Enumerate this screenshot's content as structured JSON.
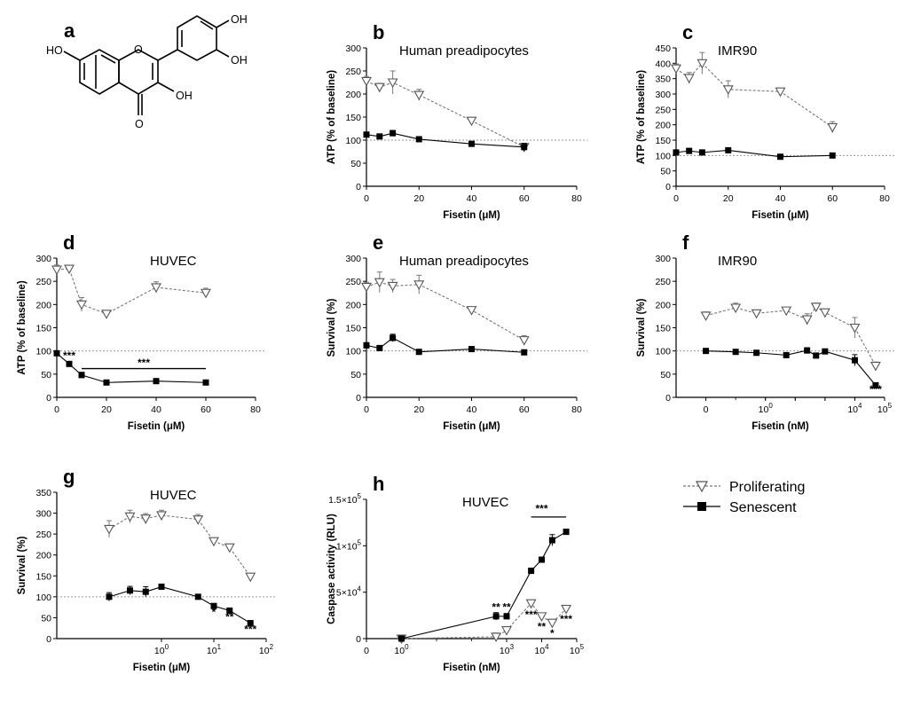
{
  "colors": {
    "proliferating": "#777777",
    "senescent": "#000000",
    "baseline": "#999999"
  },
  "legend": {
    "items": [
      "Proliferating",
      "Senescent"
    ]
  },
  "molecule": {
    "label": "a",
    "groups": [
      "HO",
      "OH",
      "OH",
      "OH",
      "O",
      "O"
    ]
  },
  "chart_data": [
    {
      "id": "b",
      "type": "line",
      "label": "b",
      "title": "Human preadipocytes",
      "xlabel": "Fisetin (μM)",
      "ylabel": "ATP (% of baseline)",
      "xscale": "linear",
      "xlim": [
        0,
        80
      ],
      "ylim": [
        0,
        300
      ],
      "xticks": [
        0,
        20,
        40,
        60,
        80
      ],
      "yticks": [
        0,
        50,
        100,
        150,
        200,
        250,
        300
      ],
      "xtick_labels": [
        "0",
        "20",
        "40",
        "60",
        "80"
      ],
      "baseline": 100,
      "series": [
        {
          "name": "Proliferating",
          "x": [
            0,
            5,
            10,
            20,
            40,
            60
          ],
          "y": [
            228,
            215,
            225,
            198,
            142,
            85
          ],
          "err": [
            10,
            8,
            25,
            12,
            4,
            8
          ]
        },
        {
          "name": "Senescent",
          "x": [
            0,
            5,
            10,
            20,
            40,
            60
          ],
          "y": [
            112,
            108,
            115,
            102,
            92,
            85
          ],
          "err": [
            5,
            5,
            6,
            4,
            4,
            8
          ]
        }
      ],
      "annotations": []
    },
    {
      "id": "c",
      "type": "line",
      "label": "c",
      "title": "IMR90",
      "xlabel": "Fisetin (μM)",
      "ylabel": "ATP (% of baseline)",
      "xscale": "linear",
      "xlim": [
        0,
        80
      ],
      "ylim": [
        0,
        450
      ],
      "xticks": [
        0,
        20,
        40,
        60,
        80
      ],
      "yticks": [
        0,
        50,
        100,
        150,
        200,
        250,
        300,
        350,
        400,
        450
      ],
      "xtick_labels": [
        "0",
        "20",
        "40",
        "60",
        "80"
      ],
      "baseline": 100,
      "series": [
        {
          "name": "Proliferating",
          "x": [
            0,
            5,
            10,
            20,
            40,
            60
          ],
          "y": [
            383,
            352,
            400,
            315,
            308,
            192
          ],
          "err": [
            15,
            18,
            35,
            28,
            10,
            18
          ]
        },
        {
          "name": "Senescent",
          "x": [
            0,
            5,
            10,
            20,
            40,
            60
          ],
          "y": [
            110,
            115,
            110,
            117,
            96,
            100
          ],
          "err": [
            5,
            5,
            5,
            5,
            4,
            4
          ]
        }
      ],
      "annotations": []
    },
    {
      "id": "d",
      "type": "line",
      "label": "d",
      "title": "HUVEC",
      "xlabel": "Fisetin (μM)",
      "ylabel": "ATP (% of baseline)",
      "xscale": "linear",
      "xlim": [
        0,
        80
      ],
      "ylim": [
        0,
        300
      ],
      "xticks": [
        0,
        20,
        40,
        60,
        80
      ],
      "yticks": [
        0,
        50,
        100,
        150,
        200,
        250,
        300
      ],
      "xtick_labels": [
        "0",
        "20",
        "40",
        "60",
        "80"
      ],
      "baseline": 100,
      "series": [
        {
          "name": "Proliferating",
          "x": [
            0,
            5,
            10,
            20,
            40,
            60
          ],
          "y": [
            275,
            277,
            200,
            180,
            237,
            225
          ],
          "err": [
            10,
            5,
            15,
            4,
            12,
            10
          ]
        },
        {
          "name": "Senescent",
          "x": [
            0,
            5,
            10,
            20,
            40,
            60
          ],
          "y": [
            95,
            72,
            48,
            32,
            35,
            32
          ],
          "err": [
            3,
            3,
            6,
            3,
            3,
            3
          ]
        }
      ],
      "annotations": [
        {
          "text": "***",
          "x": 5,
          "y": 82
        },
        {
          "text": "***",
          "x": 35,
          "y": 67
        }
      ],
      "bracket": {
        "x1": 10,
        "x2": 60,
        "y": 62
      }
    },
    {
      "id": "e",
      "type": "line",
      "label": "e",
      "title": "Human preadipocytes",
      "xlabel": "Fisetin (μM)",
      "ylabel": "Survival (%)",
      "xscale": "linear",
      "xlim": [
        0,
        80
      ],
      "ylim": [
        0,
        300
      ],
      "xticks": [
        0,
        20,
        40,
        60,
        80
      ],
      "yticks": [
        0,
        50,
        100,
        150,
        200,
        250,
        300
      ],
      "xtick_labels": [
        "0",
        "20",
        "40",
        "60",
        "80"
      ],
      "baseline": 100,
      "series": [
        {
          "name": "Proliferating",
          "x": [
            0,
            5,
            10,
            20,
            40,
            60
          ],
          "y": [
            238,
            248,
            240,
            243,
            188,
            123
          ],
          "err": [
            10,
            22,
            14,
            20,
            4,
            10
          ]
        },
        {
          "name": "Senescent",
          "x": [
            0,
            5,
            10,
            20,
            40,
            60
          ],
          "y": [
            112,
            106,
            128,
            98,
            104,
            97
          ],
          "err": [
            6,
            6,
            8,
            5,
            4,
            4
          ]
        }
      ],
      "annotations": []
    },
    {
      "id": "f",
      "type": "line",
      "label": "f",
      "title": "IMR90",
      "xlabel": "Fisetin (nM)",
      "ylabel": "Survival (%)",
      "xscale": "log",
      "xlim": [
        -2,
        5
      ],
      "ylim": [
        0,
        300
      ],
      "xticks": [
        0,
        1,
        2,
        3,
        4,
        5
      ],
      "yticks": [
        0,
        50,
        100,
        150,
        200,
        250,
        300
      ],
      "xtick_labels": [
        "0",
        "10^0",
        "",
        "",
        "10^4",
        "10^5"
      ],
      "baseline": 100,
      "series": [
        {
          "name": "Proliferating",
          "x": [
            "0",
            1,
            5,
            50,
            250,
            500,
            1000,
            10000,
            50000
          ],
          "y": [
            176,
            193,
            181,
            187,
            168,
            195,
            183,
            150,
            68
          ],
          "err": [
            8,
            10,
            6,
            5,
            12,
            8,
            5,
            22,
            8
          ]
        },
        {
          "name": "Senescent",
          "x": [
            "0",
            1,
            5,
            50,
            250,
            500,
            1000,
            10000,
            50000
          ],
          "y": [
            100,
            98,
            96,
            91,
            101,
            90,
            99,
            80,
            26
          ],
          "err": [
            4,
            4,
            4,
            4,
            6,
            4,
            4,
            12,
            3
          ]
        }
      ],
      "annotations": [
        {
          "text": "***",
          "x": 50000,
          "y": 10
        }
      ]
    },
    {
      "id": "g",
      "type": "line",
      "label": "g",
      "title": "HUVEC",
      "xlabel": "Fisetin (μM)",
      "ylabel": "Survival (%)",
      "xscale": "log",
      "xlim": [
        -2,
        2
      ],
      "ylim": [
        0,
        350
      ],
      "xticks": [
        0,
        1,
        2
      ],
      "yticks": [
        0,
        50,
        100,
        150,
        200,
        250,
        300,
        350
      ],
      "xtick_labels": [
        "10^0",
        "10^1",
        "10^2"
      ],
      "baseline": 100,
      "series": [
        {
          "name": "Proliferating",
          "x": [
            "0",
            0.25,
            0.5,
            1,
            5,
            10,
            20,
            50
          ],
          "y": [
            262,
            292,
            287,
            295,
            285,
            233,
            218,
            148
          ],
          "err": [
            20,
            15,
            12,
            12,
            12,
            8,
            5,
            8
          ]
        },
        {
          "name": "Senescent",
          "x": [
            "0",
            0.25,
            0.5,
            1,
            5,
            10,
            20,
            50
          ],
          "y": [
            100,
            115,
            112,
            124,
            100,
            78,
            67,
            37
          ],
          "err": [
            10,
            10,
            12,
            6,
            6,
            4,
            3,
            3
          ]
        }
      ],
      "annotations": [
        {
          "text": "*",
          "x": 10,
          "y": 55
        },
        {
          "text": "**",
          "x": 20,
          "y": 44
        },
        {
          "text": "***",
          "x": 50,
          "y": 14
        }
      ]
    },
    {
      "id": "h",
      "type": "line",
      "label": "h",
      "title": "HUVEC",
      "xlabel": "Fisetin (nM)",
      "ylabel": "Caspase activity (RLU)",
      "xscale": "log",
      "xlim": [
        -1,
        5
      ],
      "ylim": [
        0,
        150000
      ],
      "xticks": [
        -1,
        0,
        3,
        4,
        5
      ],
      "yticks": [
        0,
        50000,
        100000,
        150000
      ],
      "xtick_labels": [
        "0",
        "10^0",
        "10^3",
        "10^4",
        "10^5"
      ],
      "ytick_labels": [
        "0",
        "5×10^4",
        "1×10^5",
        "1.5×10^5"
      ],
      "baseline": null,
      "series": [
        {
          "name": "Proliferating",
          "x": [
            "0",
            500,
            1000,
            5000,
            10000,
            20000,
            50000
          ],
          "y": [
            0,
            2000,
            9000,
            38000,
            24000,
            17000,
            32000
          ],
          "err": [
            0,
            4000,
            2000,
            3000,
            1500,
            3000,
            3000
          ]
        },
        {
          "name": "Senescent",
          "x": [
            "0",
            500,
            1000,
            5000,
            10000,
            20000,
            50000
          ],
          "y": [
            0,
            24000,
            24000,
            73000,
            85000,
            106000,
            115000
          ],
          "err": [
            0,
            4000,
            3000,
            3000,
            2000,
            6000,
            3000
          ]
        }
      ],
      "annotations": [
        {
          "text": "**",
          "x": 500,
          "y": 30000
        },
        {
          "text": "**",
          "x": 1000,
          "y": 30000
        },
        {
          "text": "***",
          "x": 5000,
          "y": 22000
        },
        {
          "text": "**",
          "x": 10000,
          "y": 9000
        },
        {
          "text": "*",
          "x": 20000,
          "y": 2000
        },
        {
          "text": "***",
          "x": 50000,
          "y": 17000
        },
        {
          "text": "***",
          "x": 10000,
          "y": 136000
        }
      ],
      "bracket": {
        "x1": 5000,
        "x2": 50000,
        "y": 131000
      }
    }
  ]
}
